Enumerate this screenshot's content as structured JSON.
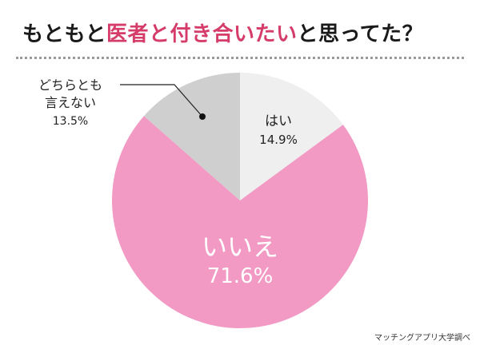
{
  "title": {
    "part1": "もともと",
    "highlight": "医者と付き合いたい",
    "part2": "と思ってた？"
  },
  "source": "マッチングアプリ大学調べ",
  "colors": {
    "yes": "#f5f5f5",
    "no": "#f29ac4",
    "neither": "#cfcfcf",
    "highlight": "#d63c6a"
  },
  "chart_data": {
    "type": "pie",
    "title": "もともと医者と付き合いたいと思ってた？",
    "slices": [
      {
        "label": "はい",
        "value": 14.9,
        "value_label": "14.9%",
        "color": "#efefef"
      },
      {
        "label": "いいえ",
        "value": 71.6,
        "value_label": "71.6%",
        "color": "#f29ac4"
      },
      {
        "label": "どちらとも\n言えない",
        "label_line1": "どちらとも",
        "label_line2": "言えない",
        "value": 13.5,
        "value_label": "13.5%",
        "color": "#cfcfcf"
      }
    ],
    "start_angle_deg": 0,
    "direction": "clockwise",
    "legend": "none"
  }
}
